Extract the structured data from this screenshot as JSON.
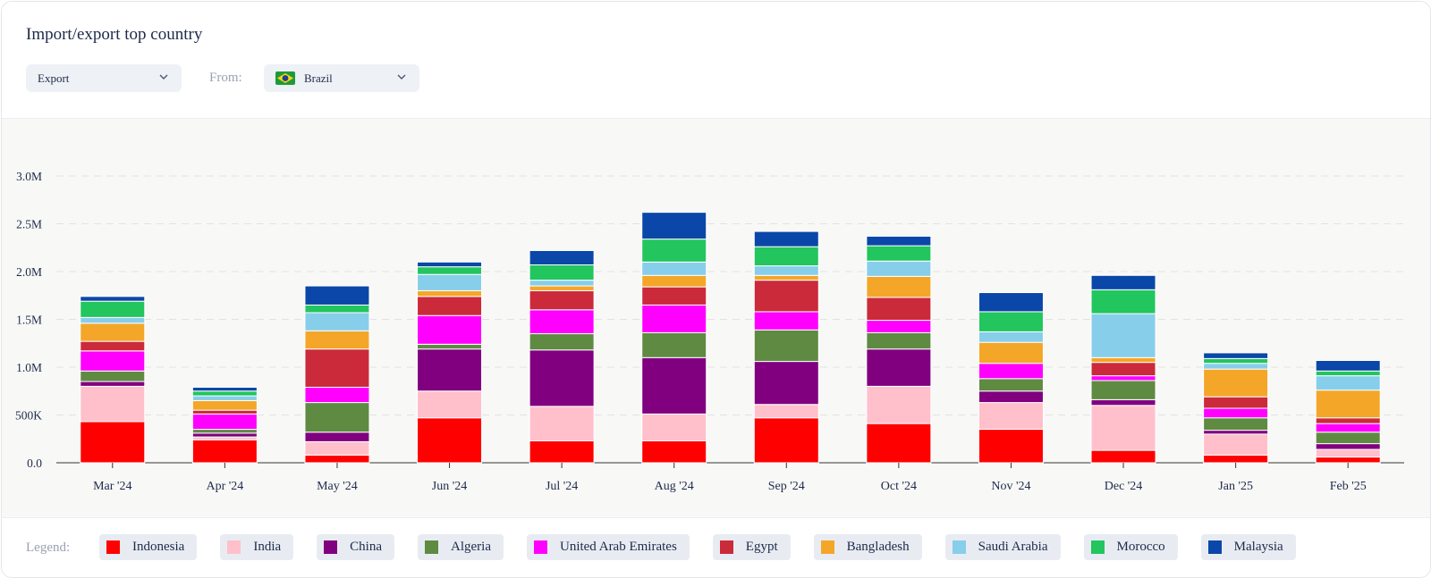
{
  "card": {
    "title": "Import/export top country",
    "type_select": {
      "value": "Export"
    },
    "from_label": "From:",
    "country_select": {
      "value": "Brazil",
      "flag_icon": "brazil-flag-icon"
    },
    "legend_label": "Legend:"
  },
  "chart_data": {
    "type": "bar",
    "stacked": true,
    "title": "",
    "xlabel": "",
    "ylabel": "",
    "ylim": [
      0,
      3000000
    ],
    "yticks": [
      0,
      500000,
      1000000,
      1500000,
      2000000,
      2500000,
      3000000
    ],
    "ytick_labels": [
      "0.0",
      "500K",
      "1.0M",
      "1.5M",
      "2.0M",
      "2.5M",
      "3.0M"
    ],
    "grid": true,
    "legend_position": "bottom",
    "categories": [
      "Mar '24",
      "Apr '24",
      "May '24",
      "Jun '24",
      "Jul '24",
      "Aug '24",
      "Sep '24",
      "Oct '24",
      "Nov '24",
      "Dec '24",
      "Jan '25",
      "Feb '25"
    ],
    "series": [
      {
        "name": "Indonesia",
        "color": "#fe0000",
        "values": [
          430000,
          240000,
          80000,
          470000,
          230000,
          230000,
          470000,
          410000,
          350000,
          130000,
          80000,
          60000
        ]
      },
      {
        "name": "India",
        "color": "#ffc0cb",
        "values": [
          370000,
          30000,
          140000,
          280000,
          360000,
          280000,
          140000,
          390000,
          280000,
          470000,
          220000,
          80000
        ]
      },
      {
        "name": "China",
        "color": "#800080",
        "values": [
          50000,
          40000,
          100000,
          440000,
          590000,
          590000,
          450000,
          390000,
          120000,
          60000,
          40000,
          60000
        ]
      },
      {
        "name": "Algeria",
        "color": "#5f8a42",
        "values": [
          110000,
          40000,
          310000,
          50000,
          170000,
          260000,
          330000,
          170000,
          130000,
          200000,
          130000,
          120000
        ]
      },
      {
        "name": "United Arab Emirates",
        "color": "#ff00ff",
        "values": [
          210000,
          160000,
          160000,
          300000,
          250000,
          290000,
          190000,
          130000,
          160000,
          50000,
          100000,
          90000
        ]
      },
      {
        "name": "Egypt",
        "color": "#cb2a3a",
        "values": [
          100000,
          40000,
          400000,
          200000,
          200000,
          190000,
          330000,
          240000,
          0,
          140000,
          120000,
          60000
        ]
      },
      {
        "name": "Bangladesh",
        "color": "#f4a629",
        "values": [
          190000,
          100000,
          190000,
          60000,
          50000,
          120000,
          50000,
          220000,
          220000,
          50000,
          290000,
          290000
        ]
      },
      {
        "name": "Saudi Arabia",
        "color": "#87ceeb",
        "values": [
          60000,
          50000,
          190000,
          170000,
          60000,
          140000,
          100000,
          160000,
          110000,
          460000,
          60000,
          150000
        ]
      },
      {
        "name": "Morocco",
        "color": "#22c55e",
        "values": [
          170000,
          50000,
          80000,
          80000,
          160000,
          240000,
          200000,
          160000,
          210000,
          250000,
          50000,
          50000
        ]
      },
      {
        "name": "Malaysia",
        "color": "#0b47a8",
        "values": [
          50000,
          40000,
          200000,
          50000,
          150000,
          280000,
          160000,
          100000,
          200000,
          150000,
          60000,
          110000
        ]
      }
    ]
  }
}
